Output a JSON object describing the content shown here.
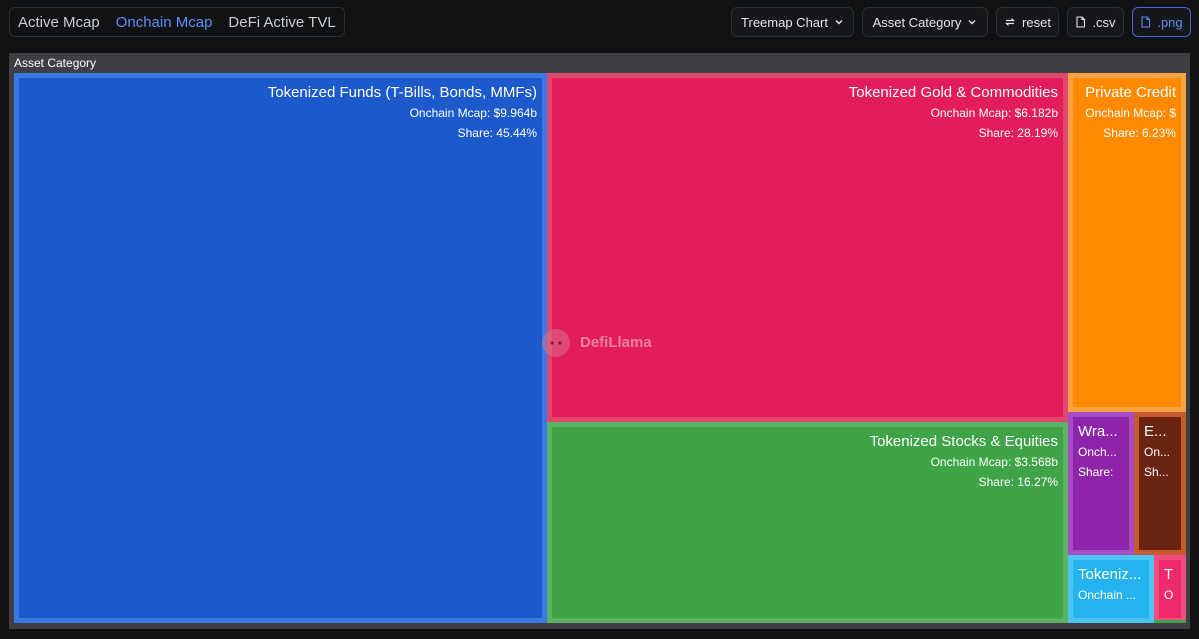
{
  "tabs": [
    {
      "label": "Active Mcap",
      "active": false
    },
    {
      "label": "Onchain Mcap",
      "active": true
    },
    {
      "label": "DeFi Active TVL",
      "active": false
    }
  ],
  "controls": {
    "chart_type": "Treemap Chart",
    "grouping": "Asset Category",
    "reset": "reset",
    "csv": ".csv",
    "png": ".png"
  },
  "watermark": "DefiLlama",
  "chart_data": {
    "type": "treemap",
    "title": "Asset Category",
    "metric_label": "Onchain Mcap:",
    "share_label": "Share:",
    "items": [
      {
        "name": "Tokenized Funds (T-Bills, Bonds, MMFs)",
        "display_name": "Tokenized Funds (T-Bills, Bonds, MMFs)",
        "value_label": "$9.964b",
        "value": 9.964,
        "share_label": "45.44%",
        "share": 45.44,
        "color": "#1c5acc",
        "border": "#3a78e6",
        "metric_display": "Onchain Mcap:",
        "share_display": "Share:"
      },
      {
        "name": "Tokenized Gold & Commodities",
        "display_name": "Tokenized Gold & Commodities",
        "value_label": "$6.182b",
        "value": 6.182,
        "share_label": "28.19%",
        "share": 28.19,
        "color": "#e31c5a",
        "border": "#e0476f",
        "metric_display": "Onchain Mcap:",
        "share_display": "Share:"
      },
      {
        "name": "Tokenized Stocks & Equities",
        "display_name": "Tokenized Stocks & Equities",
        "value_label": "$3.568b",
        "value": 3.568,
        "share_label": "16.27%",
        "share": 16.27,
        "color": "#3fa447",
        "border": "#5cb163",
        "metric_display": "Onchain Mcap:",
        "share_display": "Share:"
      },
      {
        "name": "Private Credit",
        "display_name": "Private Credit",
        "value_label": "",
        "value": null,
        "share_label": "6.23%",
        "share": 6.23,
        "color": "#ff8a00",
        "border": "#f7a340",
        "metric_display": "Onchain Mcap:  $",
        "share_display": "Share:"
      },
      {
        "name": "Wra...",
        "display_name": "Wra...",
        "value_label": "",
        "value": null,
        "share_label": "",
        "share": null,
        "color": "#8e24aa",
        "border": "#a64cc4",
        "metric_display": "Onch...",
        "share_display": "Share:"
      },
      {
        "name": "E...",
        "display_name": "E...",
        "value_label": "",
        "value": null,
        "share_label": "",
        "share": null,
        "color": "#6b2412",
        "border": "#c85a30",
        "metric_display": "On...",
        "share_display": "Sh..."
      },
      {
        "name": "Tokeniz...",
        "display_name": "Tokeniz...",
        "value_label": "",
        "value": null,
        "share_label": "",
        "share": null,
        "color": "#23b3f0",
        "border": "#4cc4f2",
        "metric_display": "Onchain ...",
        "share_display": ""
      },
      {
        "name": "T",
        "display_name": "T",
        "value_label": "",
        "value": null,
        "share_label": "",
        "share": null,
        "color": "#ee2a6c",
        "border": "#f04d80",
        "metric_display": "O",
        "share_display": ""
      }
    ]
  }
}
